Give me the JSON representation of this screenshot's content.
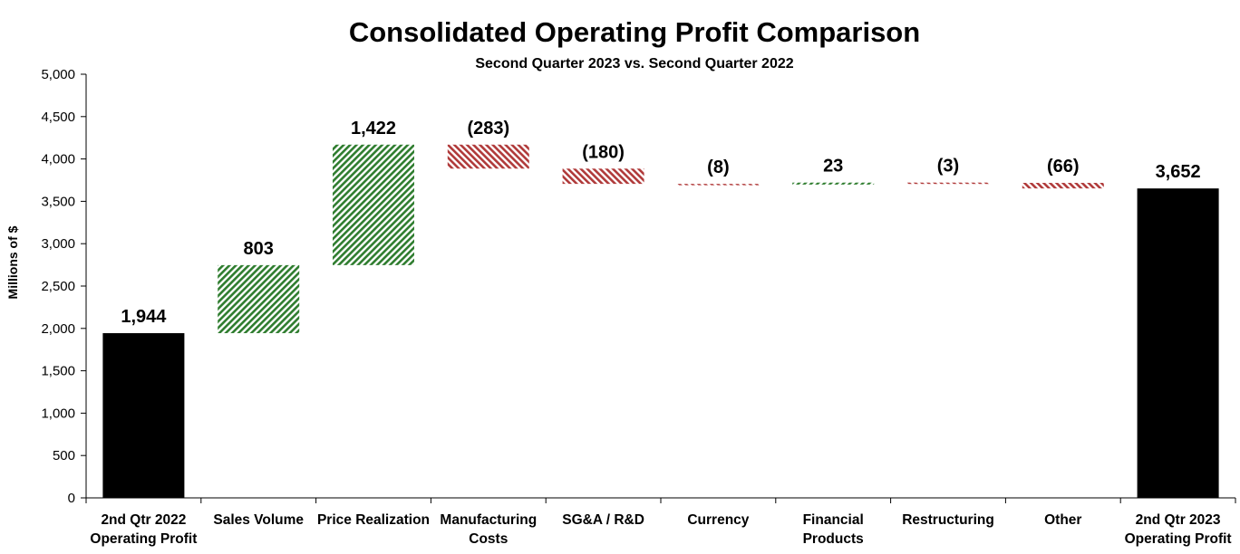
{
  "chart_data": {
    "type": "waterfall",
    "title": "Consolidated Operating Profit Comparison",
    "subtitle": "Second Quarter 2023 vs. Second Quarter 2022",
    "ylabel": "Millions of $",
    "xlabel": "",
    "ylim": [
      0,
      5000
    ],
    "ytick_step": 500,
    "yticks": [
      "0",
      "500",
      "1,000",
      "1,500",
      "2,000",
      "2,500",
      "3,000",
      "3,500",
      "4,000",
      "4,500",
      "5,000"
    ],
    "grid": false,
    "categories": [
      [
        "2nd Qtr 2022",
        "Operating Profit"
      ],
      [
        "Sales Volume"
      ],
      [
        "Price Realization"
      ],
      [
        "Manufacturing",
        "Costs"
      ],
      [
        "SG&A / R&D"
      ],
      [
        "Currency"
      ],
      [
        "Financial",
        "Products"
      ],
      [
        "Restructuring"
      ],
      [
        "Other"
      ],
      [
        "2nd Qtr 2023",
        "Operating Profit"
      ]
    ],
    "values": [
      1944,
      803,
      1422,
      -283,
      -180,
      -8,
      23,
      -3,
      -66,
      3652
    ],
    "kinds": [
      "total",
      "delta",
      "delta",
      "delta",
      "delta",
      "delta",
      "delta",
      "delta",
      "delta",
      "total"
    ],
    "data_labels": [
      "1,944",
      "803",
      "1,422",
      "(283)",
      "(180)",
      "(8)",
      "23",
      "(3)",
      "(66)",
      "3,652"
    ],
    "colors": {
      "total": "#000000",
      "increase": "#2f7d2f",
      "decrease": "#b03a3a"
    }
  }
}
